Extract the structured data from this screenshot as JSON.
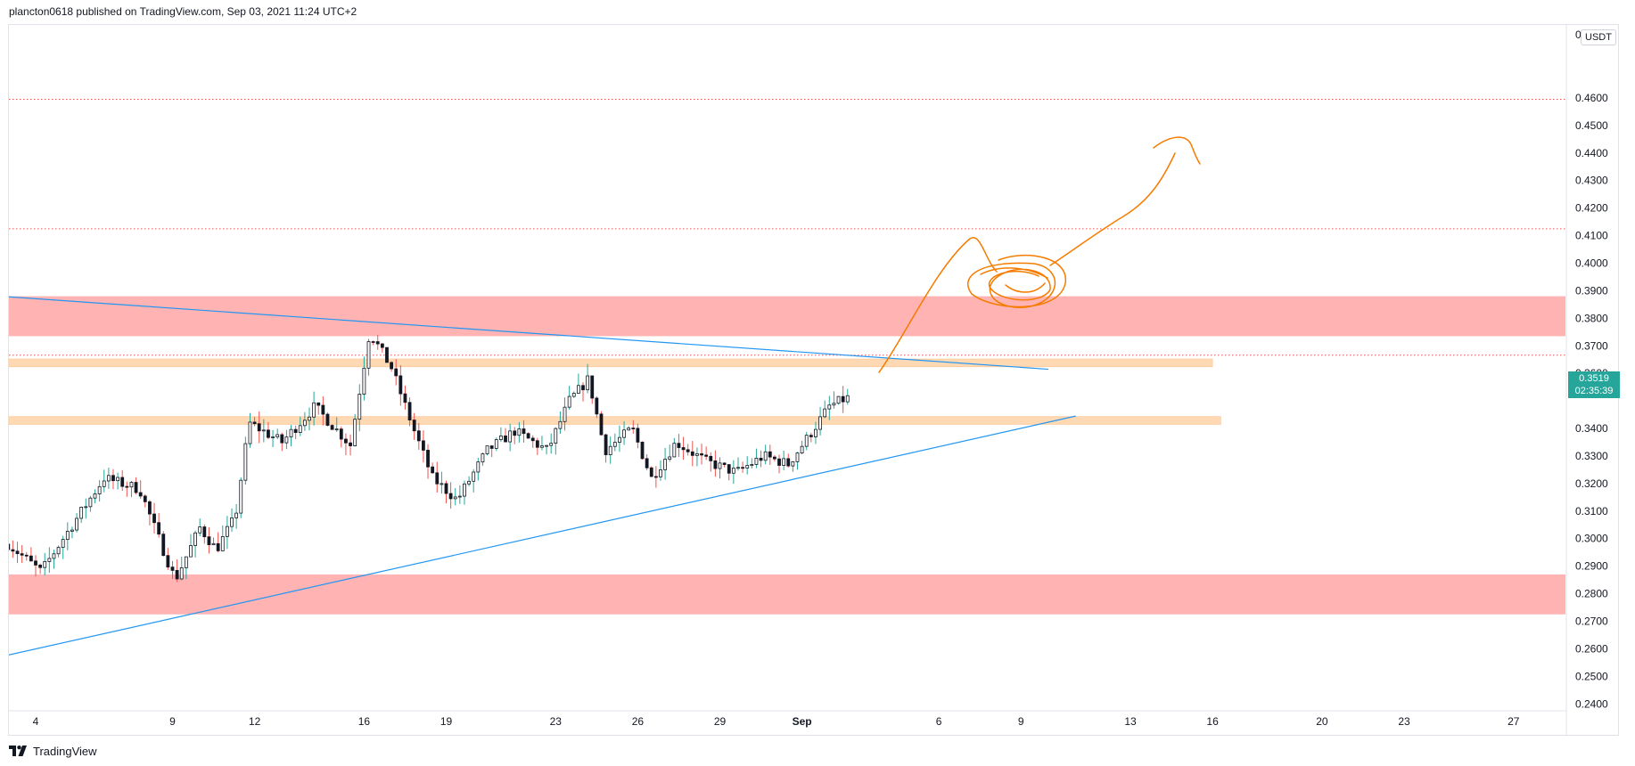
{
  "header": {
    "publisher_line": "plancton0618 published on TradingView.com, Sep 03, 2021 11:24 UTC+2"
  },
  "footer": {
    "brand": "TradingView"
  },
  "colors": {
    "up": "#26a69a",
    "down": "#ef5350",
    "candle_body": "#131722",
    "resistance_zone": "#ffb3b3",
    "support_band": "#ffd9b3",
    "trendline": "#2196f3",
    "drawing": "#f57c00",
    "dotted_level": "#ef5350",
    "price_badge": "#26a69a"
  },
  "chart_data": {
    "type": "candlestick",
    "currency": "USDT",
    "last_price": "0.3519",
    "countdown": "02:35:39",
    "y_axis": {
      "range": [
        0.2375,
        0.4865
      ],
      "ticks": [
        "0.4600",
        "0.4500",
        "0.4400",
        "0.4300",
        "0.4200",
        "0.4100",
        "0.4000",
        "0.3900",
        "0.3800",
        "0.3700",
        "0.3600",
        "0.3400",
        "0.3300",
        "0.3200",
        "0.3100",
        "0.3000",
        "0.2900",
        "0.2800",
        "0.2700",
        "0.2600",
        "0.2500",
        "0.2400"
      ],
      "top_tick": "0"
    },
    "x_axis": {
      "labels": [
        {
          "text": "4",
          "day": 4,
          "bold": false
        },
        {
          "text": "9",
          "day": 9,
          "bold": false
        },
        {
          "text": "12",
          "day": 12,
          "bold": false
        },
        {
          "text": "16",
          "day": 16,
          "bold": false
        },
        {
          "text": "19",
          "day": 19,
          "bold": false
        },
        {
          "text": "23",
          "day": 23,
          "bold": false
        },
        {
          "text": "26",
          "day": 26,
          "bold": false
        },
        {
          "text": "29",
          "day": 29,
          "bold": false
        },
        {
          "text": "Sep",
          "day": 32,
          "bold": true
        },
        {
          "text": "6",
          "day": 37,
          "bold": false
        },
        {
          "text": "9",
          "day": 40,
          "bold": false
        },
        {
          "text": "13",
          "day": 44,
          "bold": false
        },
        {
          "text": "16",
          "day": 47,
          "bold": false
        },
        {
          "text": "20",
          "day": 51,
          "bold": false
        },
        {
          "text": "23",
          "day": 54,
          "bold": false
        },
        {
          "text": "27",
          "day": 58,
          "bold": false
        }
      ]
    },
    "candle_anchors": [
      {
        "day": 3.0,
        "price": 0.298
      },
      {
        "day": 4.2,
        "price": 0.288
      },
      {
        "day": 5.0,
        "price": 0.3
      },
      {
        "day": 6.5,
        "price": 0.322
      },
      {
        "day": 7.8,
        "price": 0.318
      },
      {
        "day": 8.5,
        "price": 0.3
      },
      {
        "day": 9.1,
        "price": 0.285
      },
      {
        "day": 10.0,
        "price": 0.304
      },
      {
        "day": 10.6,
        "price": 0.296
      },
      {
        "day": 11.3,
        "price": 0.308
      },
      {
        "day": 11.8,
        "price": 0.342
      },
      {
        "day": 13.0,
        "price": 0.335
      },
      {
        "day": 14.2,
        "price": 0.348
      },
      {
        "day": 15.5,
        "price": 0.334
      },
      {
        "day": 16.2,
        "price": 0.375
      },
      {
        "day": 17.0,
        "price": 0.362
      },
      {
        "day": 17.8,
        "price": 0.34
      },
      {
        "day": 18.5,
        "price": 0.322
      },
      {
        "day": 19.4,
        "price": 0.314
      },
      {
        "day": 20.5,
        "price": 0.332
      },
      {
        "day": 21.5,
        "price": 0.339
      },
      {
        "day": 22.7,
        "price": 0.332
      },
      {
        "day": 23.5,
        "price": 0.35
      },
      {
        "day": 24.2,
        "price": 0.358
      },
      {
        "day": 24.8,
        "price": 0.332
      },
      {
        "day": 25.8,
        "price": 0.34
      },
      {
        "day": 26.5,
        "price": 0.322
      },
      {
        "day": 27.4,
        "price": 0.335
      },
      {
        "day": 28.5,
        "price": 0.328
      },
      {
        "day": 29.6,
        "price": 0.324
      },
      {
        "day": 30.6,
        "price": 0.33
      },
      {
        "day": 31.5,
        "price": 0.327
      },
      {
        "day": 32.3,
        "price": 0.338
      },
      {
        "day": 33.0,
        "price": 0.348
      },
      {
        "day": 33.8,
        "price": 0.3519
      }
    ],
    "zones": [
      {
        "low": 0.3735,
        "high": 0.388,
        "color_key": "resistance_zone"
      },
      {
        "low": 0.2725,
        "high": 0.287,
        "color_key": "resistance_zone"
      }
    ],
    "bands": [
      {
        "low": 0.3624,
        "high": 0.3652,
        "day_end": 47.0
      },
      {
        "low": 0.3415,
        "high": 0.3443,
        "day_end": 47.3
      }
    ],
    "dotted_levels": [
      0.4595,
      0.4125,
      0.3666
    ],
    "trendlines": [
      {
        "from": {
          "day": 2.0,
          "price": 0.3885
        },
        "to": {
          "day": 41.0,
          "price": 0.3615
        }
      },
      {
        "from": {
          "day": 2.0,
          "price": 0.2555
        },
        "to": {
          "day": 42.0,
          "price": 0.3445
        }
      }
    ]
  }
}
